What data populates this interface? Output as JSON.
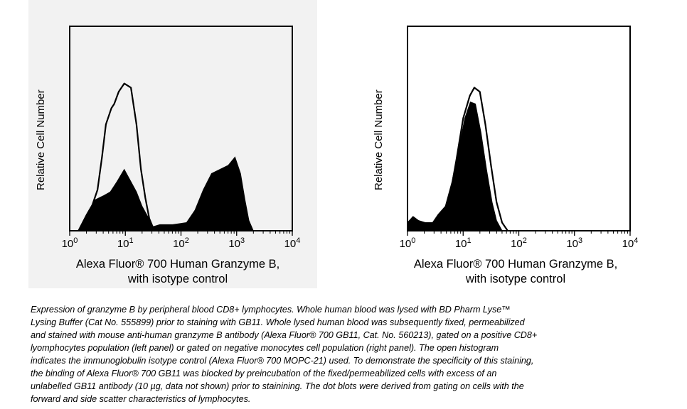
{
  "chart_data": [
    {
      "type": "histogram",
      "panel": "left",
      "scale": "log",
      "xlabel_lines": [
        "Alexa Fluor® 700 Human Granzyme B,",
        "with isotype control"
      ],
      "ylabel": "Relative Cell Number",
      "xlim_exp": [
        0,
        4
      ],
      "tick_exponents": [
        0,
        1,
        2,
        3,
        4
      ],
      "tick_base": "10",
      "series": [
        {
          "fill": "open",
          "points": [
            [
              0.2,
              0.0
            ],
            [
              0.33,
              0.05
            ],
            [
              0.4,
              0.12
            ],
            [
              0.5,
              0.2
            ],
            [
              0.58,
              0.36
            ],
            [
              0.65,
              0.52
            ],
            [
              0.75,
              0.6
            ],
            [
              0.8,
              0.62
            ],
            [
              0.88,
              0.68
            ],
            [
              0.98,
              0.72
            ],
            [
              1.1,
              0.7
            ],
            [
              1.2,
              0.52
            ],
            [
              1.28,
              0.3
            ],
            [
              1.36,
              0.16
            ],
            [
              1.43,
              0.06
            ],
            [
              1.52,
              0.0
            ]
          ]
        },
        {
          "fill": "solid",
          "points": [
            [
              0.15,
              0.0
            ],
            [
              0.3,
              0.08
            ],
            [
              0.45,
              0.15
            ],
            [
              0.6,
              0.17
            ],
            [
              0.73,
              0.19
            ],
            [
              0.85,
              0.24
            ],
            [
              0.98,
              0.3
            ],
            [
              1.08,
              0.25
            ],
            [
              1.2,
              0.19
            ],
            [
              1.3,
              0.12
            ],
            [
              1.4,
              0.07
            ],
            [
              1.5,
              0.02
            ],
            [
              1.62,
              0.03
            ],
            [
              1.85,
              0.03
            ],
            [
              2.1,
              0.04
            ],
            [
              2.25,
              0.1
            ],
            [
              2.4,
              0.2
            ],
            [
              2.55,
              0.28
            ],
            [
              2.7,
              0.3
            ],
            [
              2.85,
              0.32
            ],
            [
              2.97,
              0.36
            ],
            [
              3.07,
              0.28
            ],
            [
              3.15,
              0.15
            ],
            [
              3.22,
              0.05
            ],
            [
              3.3,
              0.0
            ]
          ]
        }
      ]
    },
    {
      "type": "histogram",
      "panel": "right",
      "scale": "log",
      "xlabel_lines": [
        "Alexa Fluor® 700 Human Granzyme B,",
        "with isotype control"
      ],
      "ylabel": "Relative Cell Number",
      "xlim_exp": [
        0,
        4
      ],
      "tick_exponents": [
        0,
        1,
        2,
        3,
        4
      ],
      "tick_base": "10",
      "series": [
        {
          "fill": "open",
          "points": [
            [
              0.6,
              0.0
            ],
            [
              0.75,
              0.15
            ],
            [
              0.88,
              0.35
            ],
            [
              1.0,
              0.55
            ],
            [
              1.12,
              0.66
            ],
            [
              1.2,
              0.7
            ],
            [
              1.3,
              0.68
            ],
            [
              1.4,
              0.52
            ],
            [
              1.5,
              0.32
            ],
            [
              1.6,
              0.14
            ],
            [
              1.7,
              0.04
            ],
            [
              1.8,
              0.0
            ]
          ]
        },
        {
          "fill": "solid",
          "points": [
            [
              0.0,
              0.04
            ],
            [
              0.1,
              0.07
            ],
            [
              0.2,
              0.05
            ],
            [
              0.32,
              0.04
            ],
            [
              0.45,
              0.04
            ],
            [
              0.55,
              0.08
            ],
            [
              0.68,
              0.12
            ],
            [
              0.8,
              0.24
            ],
            [
              0.92,
              0.4
            ],
            [
              1.03,
              0.55
            ],
            [
              1.13,
              0.63
            ],
            [
              1.22,
              0.62
            ],
            [
              1.32,
              0.48
            ],
            [
              1.42,
              0.3
            ],
            [
              1.52,
              0.14
            ],
            [
              1.6,
              0.05
            ],
            [
              1.7,
              0.0
            ]
          ]
        }
      ]
    }
  ],
  "caption": [
    "Expression of granzyme B by peripheral blood CD8+ lymphocytes. Whole human blood was lysed with BD Pharm Lyse™",
    "Lysing Buffer (Cat No. 555899) prior to staining with GB11. Whole lysed human blood was subsequently fixed, permeabilized",
    "and stained with mouse anti-human granzyme B antibody (Alexa Fluor® 700 GB11, Cat. No. 560213), gated on a positive CD8+",
    "lyomphocytes population (left panel) or  gated on negative monocytes cell population (right panel). The open histogram",
    "indicates the immunoglobulin isotype control (Alexa Fluor® 700 MOPC-21) used.  To demonstrate the specificity of this staining,",
    "the binding of Alexa Fluor® 700 GB11 was blocked by preincubation of the fixed/permeabilized cells with excess of an",
    "unlabelled GB11 antibody (10 µg, data not shown) prior to stainining. The dot blots were derived from gating on cells with the",
    "forward and side scatter characteristics of lymphocytes."
  ]
}
